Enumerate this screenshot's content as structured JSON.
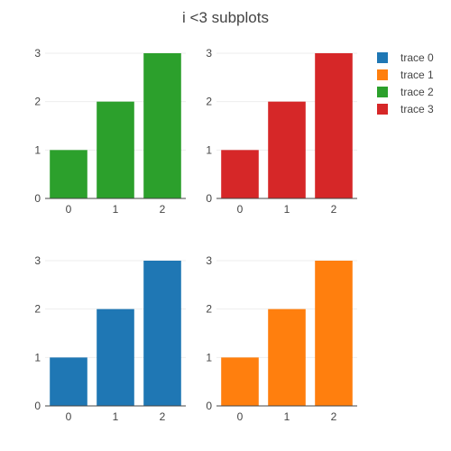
{
  "chart_data": {
    "type": "bar",
    "title": "i <3 subplots",
    "legend_position": "top-right",
    "grid": true,
    "subplots": [
      {
        "trace": "trace 2",
        "color": "#2ca02c",
        "categories": [
          "0",
          "1",
          "2"
        ],
        "values": [
          1,
          2,
          3
        ],
        "ylim": [
          0,
          3
        ],
        "yticks": [
          "0",
          "1",
          "2",
          "3"
        ]
      },
      {
        "trace": "trace 3",
        "color": "#d62728",
        "categories": [
          "0",
          "1",
          "2"
        ],
        "values": [
          1,
          2,
          3
        ],
        "ylim": [
          0,
          3
        ],
        "yticks": [
          "0",
          "1",
          "2",
          "3"
        ]
      },
      {
        "trace": "trace 0",
        "color": "#1f77b4",
        "categories": [
          "0",
          "1",
          "2"
        ],
        "values": [
          1,
          2,
          3
        ],
        "ylim": [
          0,
          3
        ],
        "yticks": [
          "0",
          "1",
          "2",
          "3"
        ]
      },
      {
        "trace": "trace 1",
        "color": "#ff7f0e",
        "categories": [
          "0",
          "1",
          "2"
        ],
        "values": [
          1,
          2,
          3
        ],
        "ylim": [
          0,
          3
        ],
        "yticks": [
          "0",
          "1",
          "2",
          "3"
        ]
      }
    ],
    "legend": [
      {
        "name": "trace 0",
        "color": "#1f77b4"
      },
      {
        "name": "trace 1",
        "color": "#ff7f0e"
      },
      {
        "name": "trace 2",
        "color": "#2ca02c"
      },
      {
        "name": "trace 3",
        "color": "#d62728"
      }
    ]
  }
}
